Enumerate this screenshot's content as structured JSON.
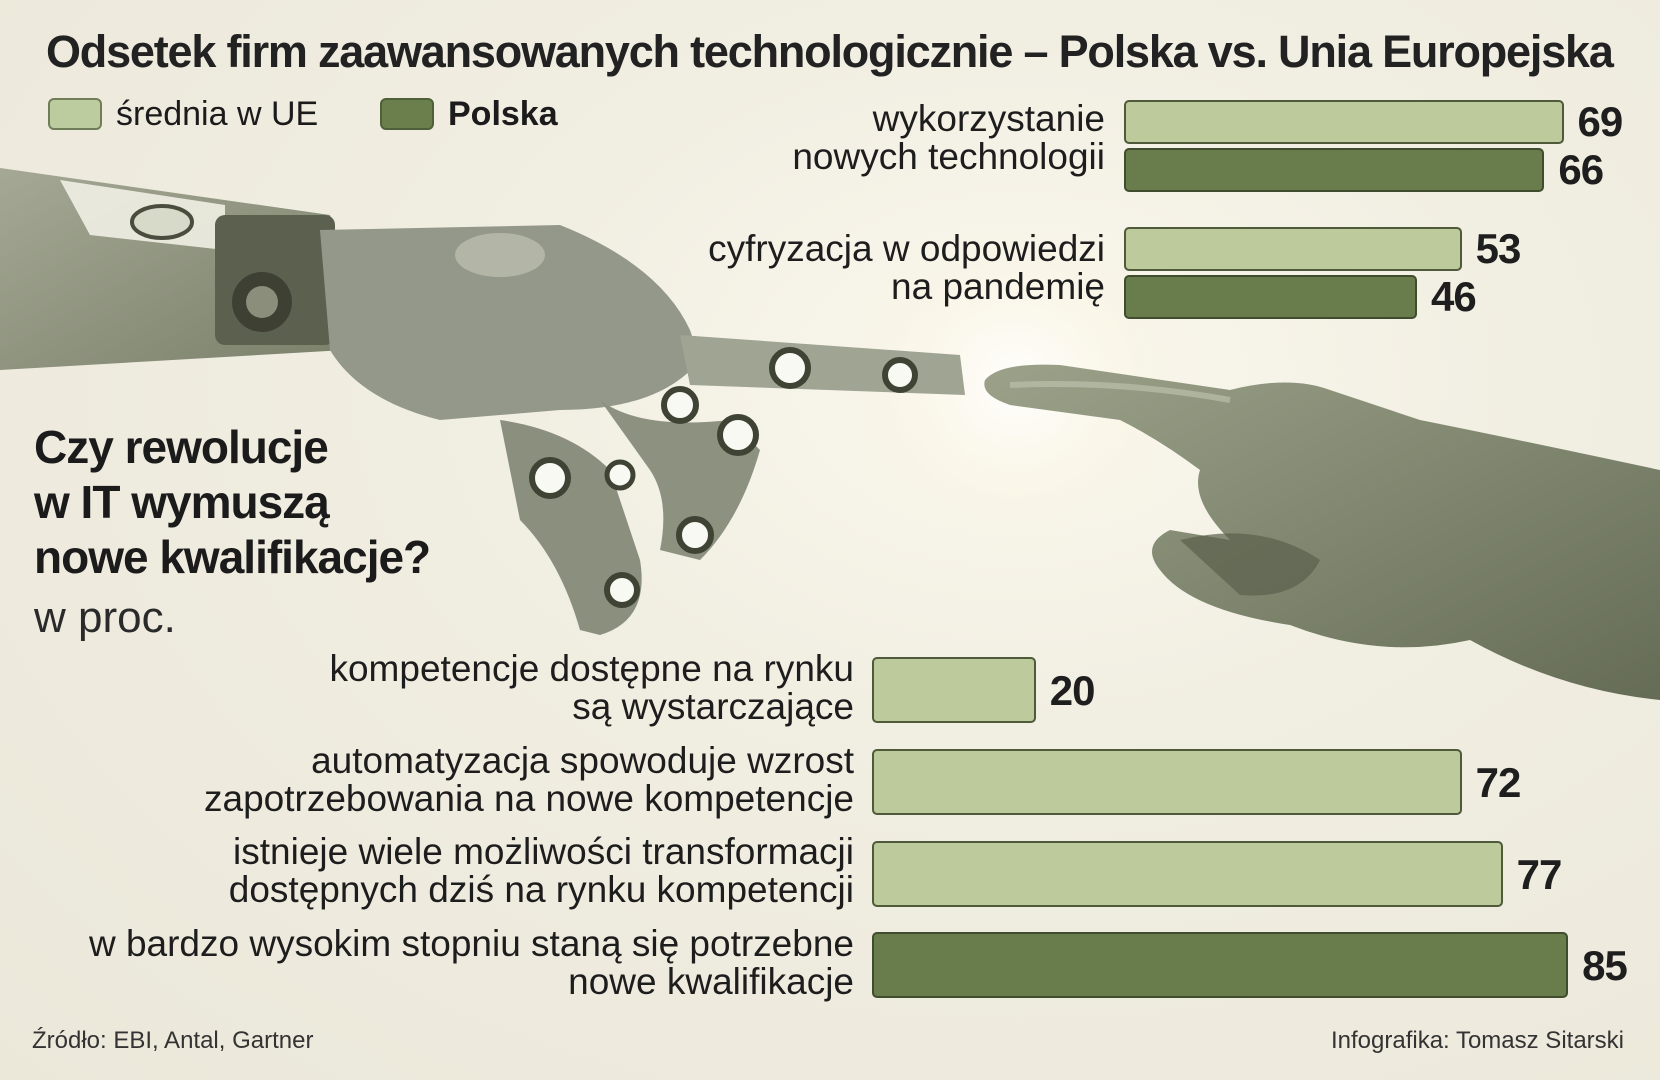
{
  "chart_data": [
    {
      "type": "bar",
      "orientation": "horizontal",
      "title": "Odsetek firm zaawansowanych technologicznie – Polska vs. Unia Europejska",
      "legend": [
        {
          "name": "średnia w UE",
          "color": "#bcca9c"
        },
        {
          "name": "Polska",
          "color": "#697d4c"
        }
      ],
      "categories": [
        {
          "lines": [
            "wykorzystanie",
            "nowych technologii"
          ]
        },
        {
          "lines": [
            "cyfryzacja w odpowiedzi",
            "na pandemię"
          ]
        }
      ],
      "series": [
        {
          "name": "średnia w UE",
          "values": [
            69,
            53
          ]
        },
        {
          "name": "Polska",
          "values": [
            66,
            46
          ]
        }
      ]
    },
    {
      "type": "bar",
      "orientation": "horizontal",
      "title": [
        "Czy rewolucje",
        "w IT wymuszą",
        "nowe kwalifikacje?"
      ],
      "unit": "w proc.",
      "items": [
        {
          "lines": [
            "kompetencje dostępne na rynku",
            "są wystarczające"
          ],
          "value": 20,
          "highlight": false
        },
        {
          "lines": [
            "automatyzacja spowoduje wzrost",
            "zapotrzebowania na nowe kompetencje"
          ],
          "value": 72,
          "highlight": false
        },
        {
          "lines": [
            "istnieje wiele możliwości transformacji",
            "dostępnych dziś na rynku kompetencji"
          ],
          "value": 77,
          "highlight": false
        },
        {
          "lines": [
            "w bardzo wysokim stopniu staną się potrzebne",
            "nowe kwalifikacje"
          ],
          "value": 85,
          "highlight": true
        }
      ]
    }
  ],
  "footer": {
    "source": "Źródło: EBI, Antal, Gartner",
    "credit": "Infografika: Tomasz Sitarski"
  }
}
